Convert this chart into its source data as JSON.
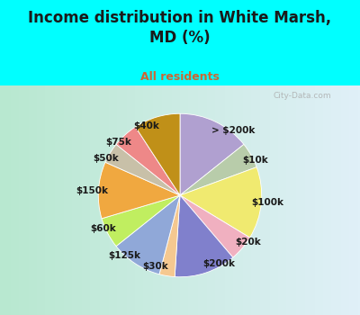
{
  "title": "Income distribution in White Marsh,\nMD (%)",
  "subtitle": "All residents",
  "title_color": "#1a1a1a",
  "subtitle_color": "#cc6633",
  "bg_color": "#00ffff",
  "chart_bg_left": "#c8e8d8",
  "chart_bg_right": "#ddeeff",
  "labels": [
    "> $200k",
    "$10k",
    "$100k",
    "$20k",
    "$200k",
    "$30k",
    "$125k",
    "$60k",
    "$150k",
    "$50k",
    "$75k",
    "$40k"
  ],
  "values": [
    14,
    5,
    14,
    5,
    12,
    3,
    10,
    6,
    11,
    4,
    5,
    9
  ],
  "colors": [
    "#b0a0d0",
    "#b8ccaa",
    "#f0ea70",
    "#f0b0c0",
    "#8080cc",
    "#f5c890",
    "#90a8d8",
    "#c0ee60",
    "#f0a840",
    "#c8c0a8",
    "#ee8888",
    "#c09018"
  ],
  "label_fontsize": 7.5,
  "label_color": "#1a1a1a",
  "line_colors": [
    "#b0a0d0",
    "#b8ccaa",
    "#f0ea70",
    "#f0b0c0",
    "#8080cc",
    "#f5c890",
    "#90a8d8",
    "#c0ee60",
    "#f0a840",
    "#c8c0a8",
    "#ee8888",
    "#c09018"
  ],
  "watermark": "City-Data.com"
}
